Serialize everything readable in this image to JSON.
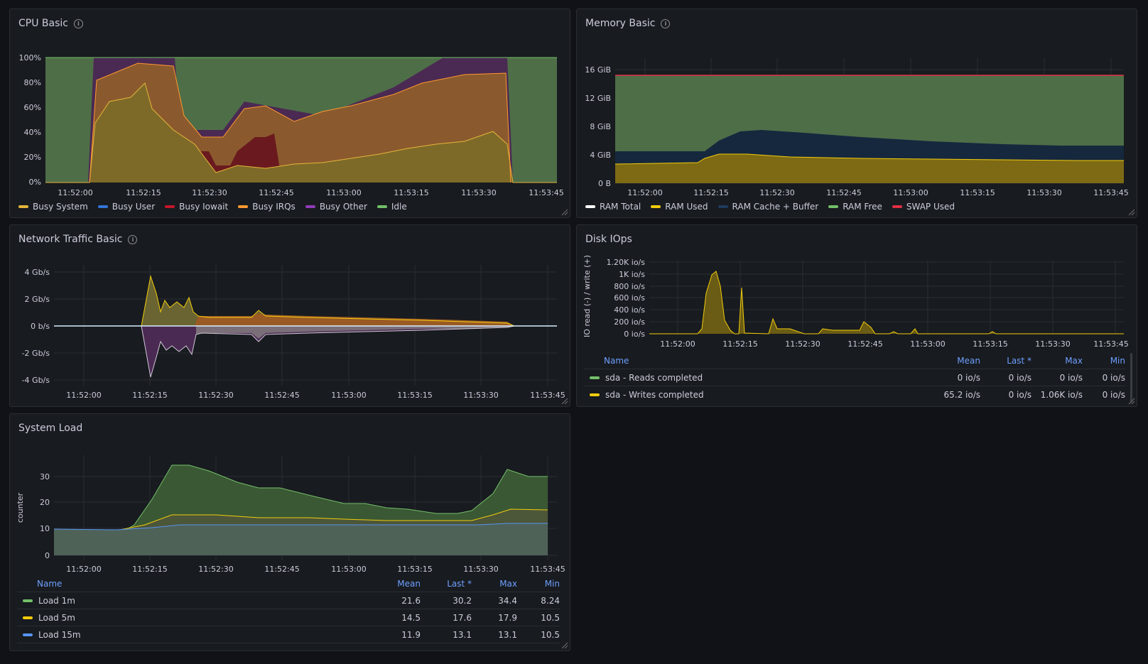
{
  "panels": {
    "cpu": {
      "title": "CPU Basic",
      "y_ticks": [
        "100%",
        "80%",
        "60%",
        "40%",
        "20%",
        "0%"
      ],
      "x_ticks": [
        "11:52:00",
        "11:52:15",
        "11:52:30",
        "11:52:45",
        "11:53:00",
        "11:53:15",
        "11:53:30",
        "11:53:45"
      ],
      "legend": [
        {
          "label": "Busy System",
          "color": "#e5b53a"
        },
        {
          "label": "Busy User",
          "color": "#3274d9"
        },
        {
          "label": "Busy Iowait",
          "color": "#c4162a"
        },
        {
          "label": "Busy IRQs",
          "color": "#ff9830"
        },
        {
          "label": "Busy Other",
          "color": "#8f3bb8"
        },
        {
          "label": "Idle",
          "color": "#73bf69"
        }
      ]
    },
    "memory": {
      "title": "Memory Basic",
      "y_ticks": [
        "16 GiB",
        "12 GiB",
        "8 GiB",
        "4 GiB",
        "0 B"
      ],
      "x_ticks": [
        "11:52:00",
        "11:52:15",
        "11:52:30",
        "11:52:45",
        "11:53:00",
        "11:53:15",
        "11:53:30",
        "11:53:45"
      ],
      "legend": [
        {
          "label": "RAM Total",
          "color": "#ffffff"
        },
        {
          "label": "RAM Used",
          "color": "#f2cc0c"
        },
        {
          "label": "RAM Cache + Buffer",
          "color": "#1f3a5f"
        },
        {
          "label": "RAM Free",
          "color": "#73bf69"
        },
        {
          "label": "SWAP Used",
          "color": "#e02f44"
        }
      ]
    },
    "network": {
      "title": "Network Traffic Basic",
      "y_ticks": [
        "4 Gb/s",
        "2 Gb/s",
        "0 b/s",
        "-2 Gb/s",
        "-4 Gb/s"
      ],
      "x_ticks": [
        "11:52:00",
        "11:52:15",
        "11:52:30",
        "11:52:45",
        "11:53:00",
        "11:53:15",
        "11:53:30",
        "11:53:45"
      ]
    },
    "disk": {
      "title": "Disk IOps",
      "y_axis_label": "IO read (-) / write (+)",
      "y_ticks": [
        "1.20K io/s",
        "1K io/s",
        "800 io/s",
        "600 io/s",
        "400 io/s",
        "200 io/s",
        "0 io/s"
      ],
      "x_ticks": [
        "11:52:00",
        "11:52:15",
        "11:52:30",
        "11:52:45",
        "11:53:00",
        "11:53:15",
        "11:53:30",
        "11:53:45"
      ],
      "table": {
        "headers": [
          "Name",
          "Mean",
          "Last *",
          "Max",
          "Min"
        ],
        "rows": [
          {
            "name": "sda - Reads completed",
            "color": "#73bf69",
            "mean": "0 io/s",
            "last": "0 io/s",
            "max": "0 io/s",
            "min": "0 io/s"
          },
          {
            "name": "sda - Writes completed",
            "color": "#f2cc0c",
            "mean": "65.2 io/s",
            "last": "0 io/s",
            "max": "1.06K io/s",
            "min": "0 io/s"
          }
        ]
      }
    },
    "load": {
      "title": "System Load",
      "y_axis_label": "counter",
      "y_ticks": [
        "30",
        "20",
        "10",
        "0"
      ],
      "x_ticks": [
        "11:52:00",
        "11:52:15",
        "11:52:30",
        "11:52:45",
        "11:53:00",
        "11:53:15",
        "11:53:30",
        "11:53:45"
      ],
      "table": {
        "headers": [
          "Name",
          "Mean",
          "Last *",
          "Max",
          "Min"
        ],
        "rows": [
          {
            "name": "Load 1m",
            "color": "#73bf69",
            "mean": "21.6",
            "last": "30.2",
            "max": "34.4",
            "min": "8.24"
          },
          {
            "name": "Load 5m",
            "color": "#f2cc0c",
            "mean": "14.5",
            "last": "17.6",
            "max": "17.9",
            "min": "10.5"
          },
          {
            "name": "Load 15m",
            "color": "#5794f2",
            "mean": "11.9",
            "last": "13.1",
            "max": "13.1",
            "min": "10.5"
          }
        ]
      }
    }
  },
  "chart_data": [
    {
      "type": "area",
      "title": "CPU Basic",
      "x": [
        "11:52:00",
        "11:52:15",
        "11:52:30",
        "11:52:45",
        "11:53:00",
        "11:53:15",
        "11:53:30",
        "11:53:45"
      ],
      "ylim": [
        0,
        100
      ],
      "series": [
        {
          "name": "Busy System",
          "values": [
            1,
            60,
            25,
            20,
            25,
            30,
            40,
            0
          ]
        },
        {
          "name": "Busy User",
          "values": [
            0,
            1,
            1,
            1,
            2,
            1,
            1,
            0
          ]
        },
        {
          "name": "Busy Iowait",
          "values": [
            0,
            1,
            15,
            15,
            2,
            1,
            1,
            0
          ]
        },
        {
          "name": "Busy IRQs",
          "values": [
            0,
            33,
            8,
            38,
            40,
            48,
            55,
            0
          ]
        },
        {
          "name": "Busy Other",
          "values": [
            0,
            5,
            1,
            3,
            6,
            12,
            3,
            0
          ]
        },
        {
          "name": "Idle",
          "values": [
            99,
            0,
            50,
            23,
            25,
            8,
            0,
            100
          ]
        }
      ]
    },
    {
      "type": "area",
      "title": "Memory Basic",
      "x": [
        "11:52:00",
        "11:52:15",
        "11:52:30",
        "11:52:45",
        "11:53:00",
        "11:53:15",
        "11:53:30",
        "11:53:45"
      ],
      "ylim": [
        0,
        17
      ],
      "series": [
        {
          "name": "RAM Total",
          "values": [
            15.6,
            15.6,
            15.6,
            15.6,
            15.6,
            15.6,
            15.6,
            15.6
          ]
        },
        {
          "name": "RAM Used",
          "values": [
            2.9,
            3.5,
            4.2,
            3.9,
            3.7,
            3.5,
            3.4,
            3.4
          ]
        },
        {
          "name": "RAM Cache + Buffer",
          "values": [
            1.6,
            2,
            3.3,
            3,
            2.6,
            2.3,
            2,
            1.9
          ]
        },
        {
          "name": "RAM Free",
          "values": [
            11.1,
            10.1,
            8.1,
            8.7,
            9.3,
            9.8,
            10.2,
            10.3
          ]
        },
        {
          "name": "SWAP Used",
          "values": [
            0,
            0,
            0,
            0,
            0,
            0,
            0,
            0
          ]
        }
      ]
    },
    {
      "type": "area",
      "title": "Network Traffic Basic",
      "x": [
        "11:52:00",
        "11:52:15",
        "11:52:30",
        "11:52:45",
        "11:53:00",
        "11:53:15",
        "11:53:30",
        "11:53:45"
      ],
      "ylim": [
        -4.5,
        4.5
      ],
      "series": [
        {
          "name": "",
          "values": [
            0,
            3.8,
            0.7,
            0.7,
            0.6,
            0.5,
            0.4,
            0
          ]
        },
        {
          "name": "",
          "values": [
            0,
            -3.7,
            -0.5,
            -0.5,
            -0.4,
            -0.4,
            -0.3,
            0
          ]
        }
      ]
    },
    {
      "type": "area",
      "title": "Disk IOps",
      "x": [
        "11:52:00",
        "11:52:15",
        "11:52:30",
        "11:52:45",
        "11:53:00",
        "11:53:15",
        "11:53:30",
        "11:53:45"
      ],
      "ylim": [
        0,
        1200
      ],
      "series": [
        {
          "name": "sda - Reads completed",
          "values": [
            0,
            0,
            0,
            0,
            0,
            0,
            0,
            0
          ]
        },
        {
          "name": "sda - Writes completed",
          "values": [
            0,
            1060,
            100,
            170,
            60,
            20,
            0,
            0
          ]
        }
      ]
    },
    {
      "type": "area",
      "title": "System Load",
      "x": [
        "11:52:00",
        "11:52:15",
        "11:52:30",
        "11:52:45",
        "11:53:00",
        "11:53:15",
        "11:53:30",
        "11:53:45"
      ],
      "ylim": [
        0,
        35
      ],
      "series": [
        {
          "name": "Load 1m",
          "values": [
            8.5,
            23,
            33,
            26,
            20.5,
            18,
            24,
            30.2
          ]
        },
        {
          "name": "Load 5m",
          "values": [
            10.5,
            11.5,
            16,
            15.5,
            15,
            14.5,
            16,
            17.6
          ]
        },
        {
          "name": "Load 15m",
          "values": [
            10.5,
            11,
            12.5,
            12.3,
            12.2,
            12.1,
            12.5,
            13.1
          ]
        }
      ]
    }
  ]
}
